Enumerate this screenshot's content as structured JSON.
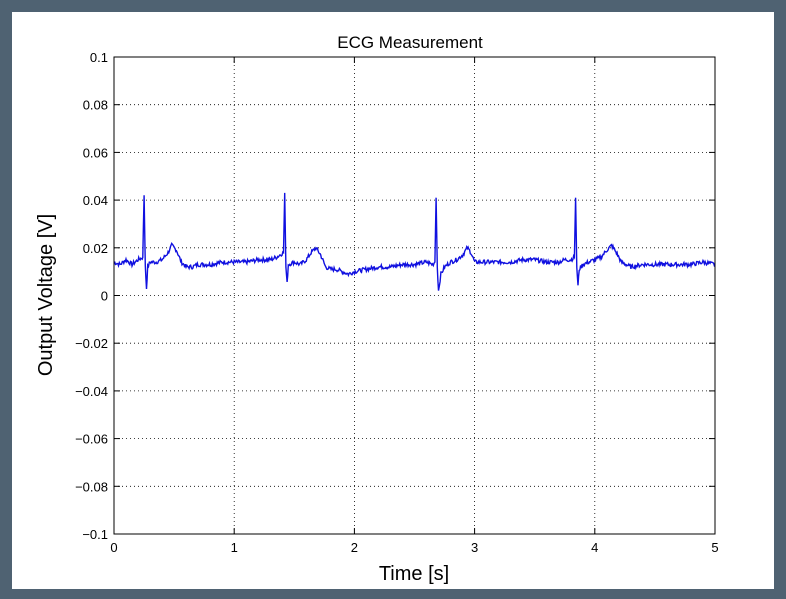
{
  "chart_data": {
    "type": "line",
    "title": "ECG Measurement",
    "xlabel": "Time [s]",
    "ylabel": "Output Voltage [V]",
    "xlim": [
      0,
      5
    ],
    "ylim": [
      -0.1,
      0.1
    ],
    "x_ticks": [
      "0",
      "1",
      "2",
      "3",
      "4",
      "5"
    ],
    "y_ticks": [
      "0.1",
      "0.08",
      "0.06",
      "0.04",
      "0.02",
      "0",
      "−0.02",
      "−0.04",
      "−0.06",
      "−0.08",
      "−0.1"
    ],
    "grid": true,
    "legend": "none",
    "colors": {
      "series": "#1010e0",
      "grid": "#000000",
      "frame": "#4f6272"
    },
    "series": [
      {
        "x": [
          0,
          0.05,
          0.1,
          0.15,
          0.2,
          0.24,
          0.25,
          0.26,
          0.27,
          0.28,
          0.3,
          0.35,
          0.4,
          0.45,
          0.48,
          0.52,
          0.56,
          0.6,
          0.65,
          0.7,
          0.8,
          0.9,
          1.0,
          1.1,
          1.2,
          1.3,
          1.35,
          1.38,
          1.41,
          1.42,
          1.43,
          1.44,
          1.45,
          1.5,
          1.55,
          1.6,
          1.64,
          1.68,
          1.72,
          1.76,
          1.8,
          1.85,
          1.9,
          1.95,
          2.0,
          2.1,
          2.2,
          2.3,
          2.4,
          2.5,
          2.6,
          2.65,
          2.67,
          2.68,
          2.69,
          2.7,
          2.72,
          2.75,
          2.8,
          2.85,
          2.9,
          2.94,
          2.97,
          3.0,
          3.05,
          3.1,
          3.2,
          3.3,
          3.4,
          3.5,
          3.6,
          3.7,
          3.75,
          3.8,
          3.83,
          3.84,
          3.85,
          3.86,
          3.87,
          3.9,
          3.95,
          4.0,
          4.05,
          4.1,
          4.14,
          4.18,
          4.22,
          4.26,
          4.3,
          4.4,
          4.5,
          4.6,
          4.7,
          4.8,
          4.9,
          5.0
        ],
        "y": [
          0.014,
          0.013,
          0.015,
          0.013,
          0.015,
          0.016,
          0.042,
          0.012,
          0.003,
          0.012,
          0.014,
          0.014,
          0.015,
          0.018,
          0.021,
          0.019,
          0.014,
          0.012,
          0.012,
          0.013,
          0.013,
          0.014,
          0.014,
          0.014,
          0.015,
          0.015,
          0.016,
          0.017,
          0.018,
          0.043,
          0.012,
          0.005,
          0.013,
          0.014,
          0.013,
          0.015,
          0.018,
          0.02,
          0.017,
          0.012,
          0.011,
          0.011,
          0.01,
          0.009,
          0.01,
          0.011,
          0.012,
          0.012,
          0.013,
          0.013,
          0.014,
          0.013,
          0.014,
          0.041,
          0.012,
          0.002,
          0.009,
          0.012,
          0.014,
          0.015,
          0.017,
          0.02,
          0.018,
          0.014,
          0.014,
          0.014,
          0.014,
          0.014,
          0.015,
          0.015,
          0.014,
          0.014,
          0.015,
          0.015,
          0.016,
          0.041,
          0.012,
          0.004,
          0.011,
          0.013,
          0.014,
          0.015,
          0.016,
          0.019,
          0.021,
          0.018,
          0.014,
          0.013,
          0.012,
          0.013,
          0.013,
          0.013,
          0.013,
          0.013,
          0.014,
          0.013
        ]
      }
    ]
  }
}
